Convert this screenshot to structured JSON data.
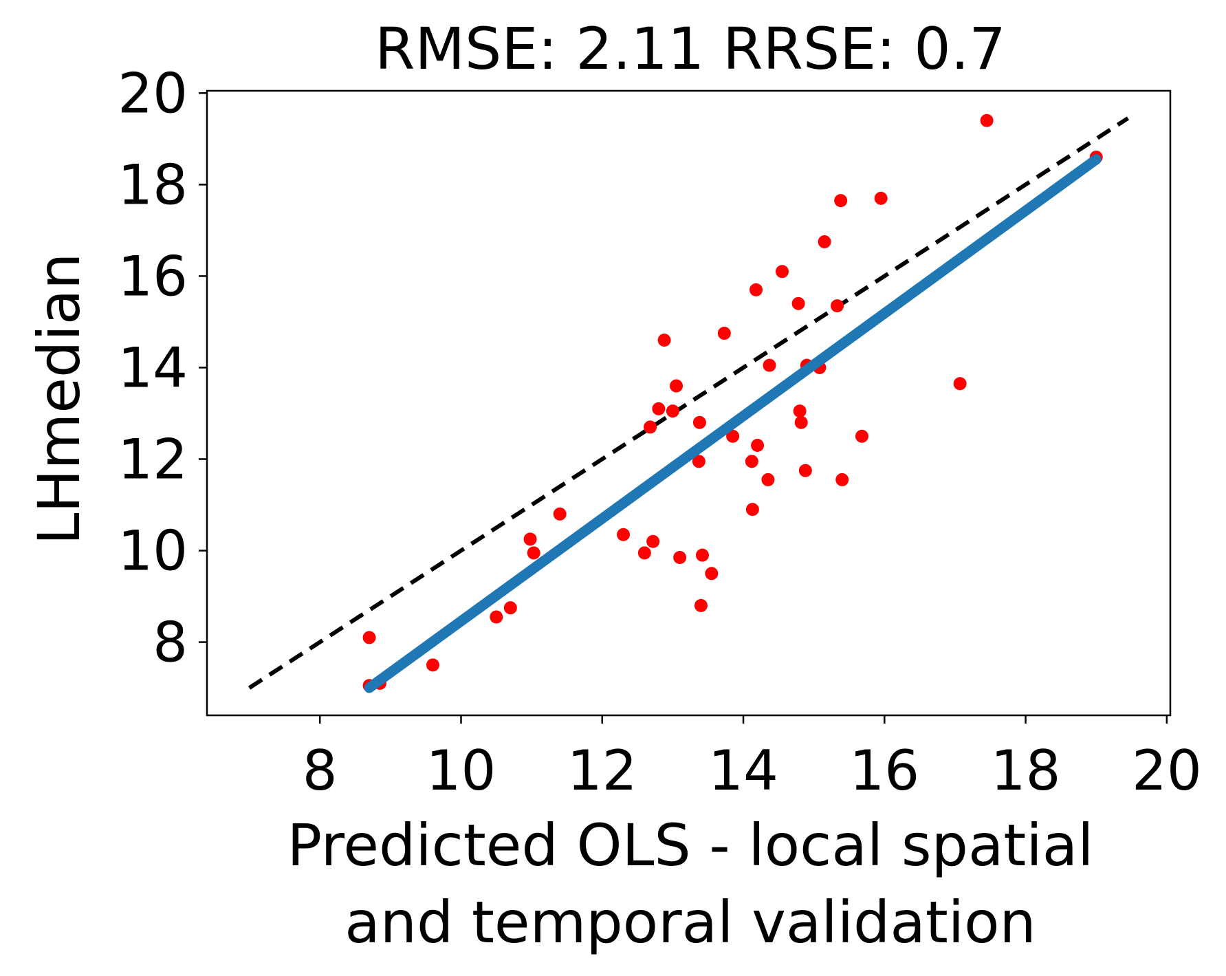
{
  "chart_data": {
    "type": "scatter",
    "title": "RMSE: 2.11 RRSE: 0.7",
    "xlabel": [
      "Predicted OLS - local spatial",
      "and temporal validation"
    ],
    "ylabel": "LHmedian",
    "xlim": [
      6.4,
      20.05
    ],
    "ylim": [
      6.4,
      20.05
    ],
    "xticks": [
      8,
      10,
      12,
      14,
      16,
      18,
      20
    ],
    "yticks": [
      8,
      10,
      12,
      14,
      16,
      18,
      20
    ],
    "grid": false,
    "legend": "none",
    "series": [
      {
        "type": "scatter",
        "color": "#ff0000",
        "x": [
          8.7,
          8.7,
          8.85,
          9.6,
          10.5,
          10.7,
          10.98,
          11.03,
          11.4,
          12.3,
          12.6,
          12.68,
          12.72,
          12.8,
          12.88,
          13.0,
          13.05,
          13.1,
          13.37,
          13.38,
          13.4,
          13.42,
          13.55,
          13.73,
          13.85,
          14.12,
          14.13,
          14.18,
          14.2,
          14.35,
          14.37,
          14.55,
          14.78,
          14.8,
          14.82,
          14.88,
          14.9,
          15.08,
          15.15,
          15.33,
          15.38,
          15.4,
          15.68,
          15.95,
          17.07,
          17.45,
          19.0
        ],
        "y": [
          8.1,
          7.05,
          7.1,
          7.5,
          8.55,
          8.75,
          10.25,
          9.95,
          10.8,
          10.35,
          9.95,
          12.7,
          10.2,
          13.1,
          14.6,
          13.05,
          13.6,
          9.85,
          11.95,
          12.8,
          8.8,
          9.9,
          9.5,
          14.75,
          12.5,
          11.95,
          10.9,
          15.7,
          12.3,
          11.55,
          14.05,
          16.1,
          15.4,
          13.05,
          12.8,
          11.75,
          14.05,
          14.0,
          16.75,
          15.35,
          17.65,
          11.55,
          12.5,
          17.7,
          13.65,
          19.4,
          18.6
        ]
      },
      {
        "type": "line",
        "style": "fit",
        "color": "#1f77b4",
        "x": [
          8.7,
          19.0
        ],
        "y": [
          7.0,
          18.55
        ]
      },
      {
        "type": "line",
        "style": "dashed",
        "color": "#000000",
        "x": [
          7.0,
          19.45
        ],
        "y": [
          7.0,
          19.45
        ]
      }
    ]
  }
}
